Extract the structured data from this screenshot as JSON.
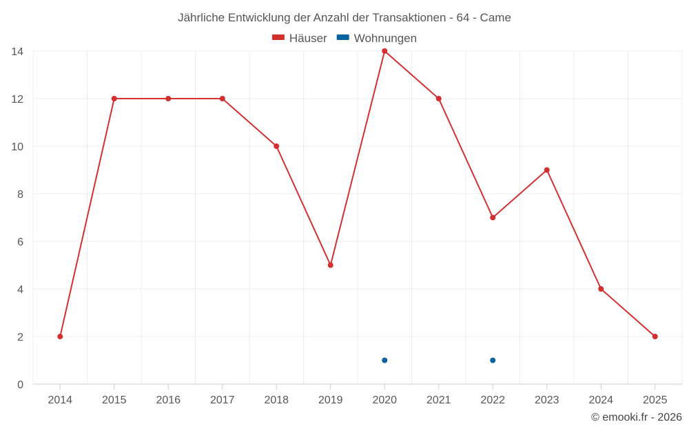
{
  "chart_data": {
    "type": "line",
    "title": "Jährliche Entwicklung der Anzahl der Transaktionen - 64 - Came",
    "categories": [
      "2014",
      "2015",
      "2016",
      "2017",
      "2018",
      "2019",
      "2020",
      "2021",
      "2022",
      "2023",
      "2024",
      "2025"
    ],
    "series": [
      {
        "name": "Häuser",
        "color": "#d32f2f",
        "values": [
          2,
          12,
          12,
          12,
          10,
          5,
          14,
          12,
          7,
          9,
          4,
          2
        ]
      },
      {
        "name": "Wohnungen",
        "color": "#0a63a0",
        "values": [
          null,
          null,
          null,
          null,
          null,
          null,
          1,
          null,
          1,
          null,
          null,
          null
        ]
      }
    ],
    "ylim": [
      0,
      14
    ],
    "yticks": [
      "0",
      "2",
      "4",
      "6",
      "8",
      "10",
      "12",
      "14"
    ],
    "xlabel": "",
    "ylabel": "",
    "legend_position": "top-center",
    "grid": true
  },
  "credit": "© emooki.fr - 2026"
}
